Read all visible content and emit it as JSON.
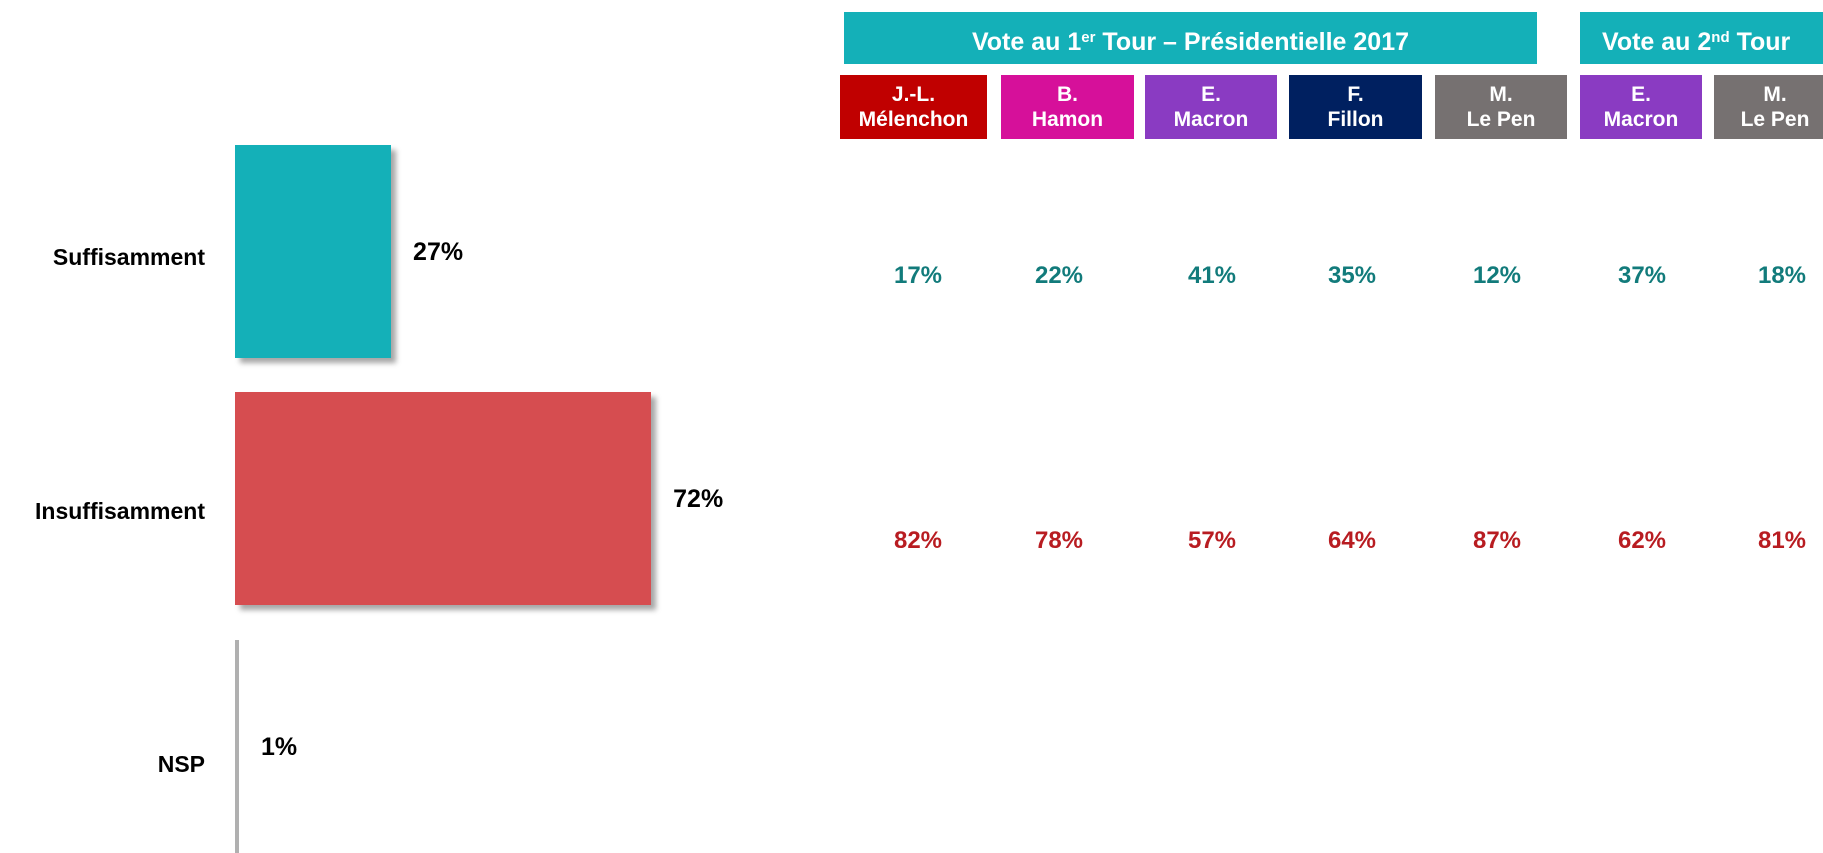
{
  "colors": {
    "suffisamment": "#14b0b8",
    "insuffisamment": "#d64d50",
    "nsp": "#b0b0b0",
    "row_suffisamment_text": "#127b7b",
    "row_insuffisamment_text": "#b81c21",
    "group_header": "#14b0b8"
  },
  "chart_data": {
    "type": "bar",
    "orientation": "horizontal",
    "categories": [
      "Suffisamment",
      "Insuffisamment",
      "NSP"
    ],
    "values": [
      27,
      72,
      1
    ],
    "value_labels": [
      "27%",
      "72%",
      "1%"
    ],
    "xlim": [
      0,
      100
    ],
    "grid": false,
    "legend": "none"
  },
  "table": {
    "groups": [
      {
        "label": "Vote au 1",
        "sup": "er",
        "label_rest": " Tour – Présidentielle 2017",
        "span": 5
      },
      {
        "label": "Vote au 2",
        "sup": "nd",
        "label_rest": " Tour",
        "span": 2
      }
    ],
    "candidates": [
      {
        "line1": "J.-L.",
        "line2": "Mélenchon",
        "color": "#c00000"
      },
      {
        "line1": "B.",
        "line2": "Hamon",
        "color": "#d6109a"
      },
      {
        "line1": "E.",
        "line2": "Macron",
        "color": "#8a3bc2"
      },
      {
        "line1": "F.",
        "line2": "Fillon",
        "color": "#002060"
      },
      {
        "line1": "M.",
        "line2": "Le Pen",
        "color": "#767171"
      },
      {
        "line1": "E.",
        "line2": "Macron",
        "color": "#8a3bc2"
      },
      {
        "line1": "M.",
        "line2": "Le Pen",
        "color": "#767171"
      }
    ],
    "rows": [
      {
        "category": "Suffisamment",
        "values": [
          "17%",
          "22%",
          "41%",
          "35%",
          "12%",
          "37%",
          "18%"
        ]
      },
      {
        "category": "Insuffisamment",
        "values": [
          "82%",
          "78%",
          "57%",
          "64%",
          "87%",
          "62%",
          "81%"
        ]
      }
    ]
  }
}
